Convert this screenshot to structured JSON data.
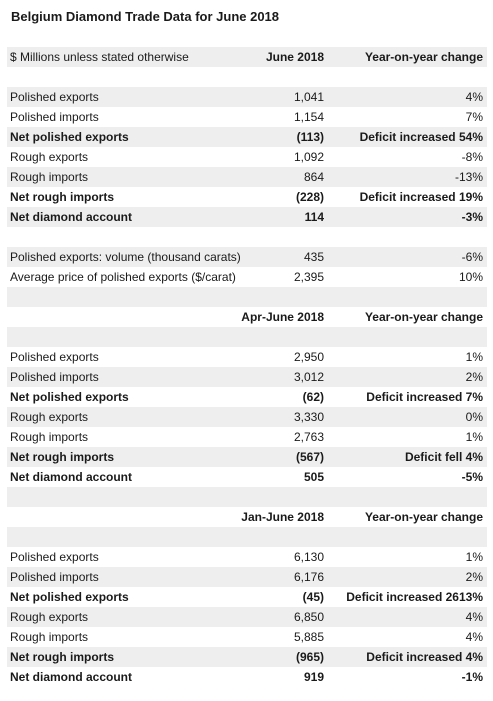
{
  "title": "Belgium Diamond Trade Data for June 2018",
  "header": {
    "units": "$ Millions unless stated otherwise",
    "period": "June 2018",
    "change": "Year-on-year change"
  },
  "section1": {
    "rows": [
      {
        "label": "Polished exports",
        "value": "1,041",
        "change": "4%"
      },
      {
        "label": "Polished imports",
        "value": "1,154",
        "change": "7%"
      },
      {
        "label": "Net polished exports",
        "value": "(113)",
        "change": "Deficit increased 54%"
      },
      {
        "label": "Rough exports",
        "value": "1,092",
        "change": "-8%"
      },
      {
        "label": "Rough imports",
        "value": "864",
        "change": "-13%"
      },
      {
        "label": "Net rough imports",
        "value": "(228)",
        "change": "Deficit increased 19%"
      },
      {
        "label": "Net diamond account",
        "value": "114",
        "change": "-3%"
      }
    ],
    "extra": [
      {
        "label": "Polished exports: volume (thousand carats)",
        "value": "435",
        "change": "-6%"
      },
      {
        "label": "Average price of polished exports ($/carat)",
        "value": "2,395",
        "change": "10%"
      }
    ]
  },
  "section2": {
    "period": "Apr-June 2018",
    "change": "Year-on-year change",
    "rows": [
      {
        "label": "Polished exports",
        "value": "2,950",
        "change": "1%"
      },
      {
        "label": "Polished imports",
        "value": "3,012",
        "change": "2%"
      },
      {
        "label": "Net polished exports",
        "value": "(62)",
        "change": "Deficit increased 7%"
      },
      {
        "label": "Rough exports",
        "value": "3,330",
        "change": "0%"
      },
      {
        "label": "Rough imports",
        "value": "2,763",
        "change": "1%"
      },
      {
        "label": "Net rough imports",
        "value": "(567)",
        "change": "Deficit fell 4%"
      },
      {
        "label": "Net diamond account",
        "value": "505",
        "change": "-5%"
      }
    ]
  },
  "section3": {
    "period": "Jan-June 2018",
    "change": "Year-on-year change",
    "rows": [
      {
        "label": "Polished exports",
        "value": "6,130",
        "change": "1%"
      },
      {
        "label": "Polished imports",
        "value": "6,176",
        "change": "2%"
      },
      {
        "label": "Net polished exports",
        "value": "(45)",
        "change": "Deficit increased 2613%"
      },
      {
        "label": "Rough exports",
        "value": "6,850",
        "change": "4%"
      },
      {
        "label": "Rough imports",
        "value": "5,885",
        "change": "4%"
      },
      {
        "label": "Net rough imports",
        "value": "(965)",
        "change": "Deficit increased 4%"
      },
      {
        "label": "Net diamond account",
        "value": "919",
        "change": "-1%"
      }
    ]
  }
}
